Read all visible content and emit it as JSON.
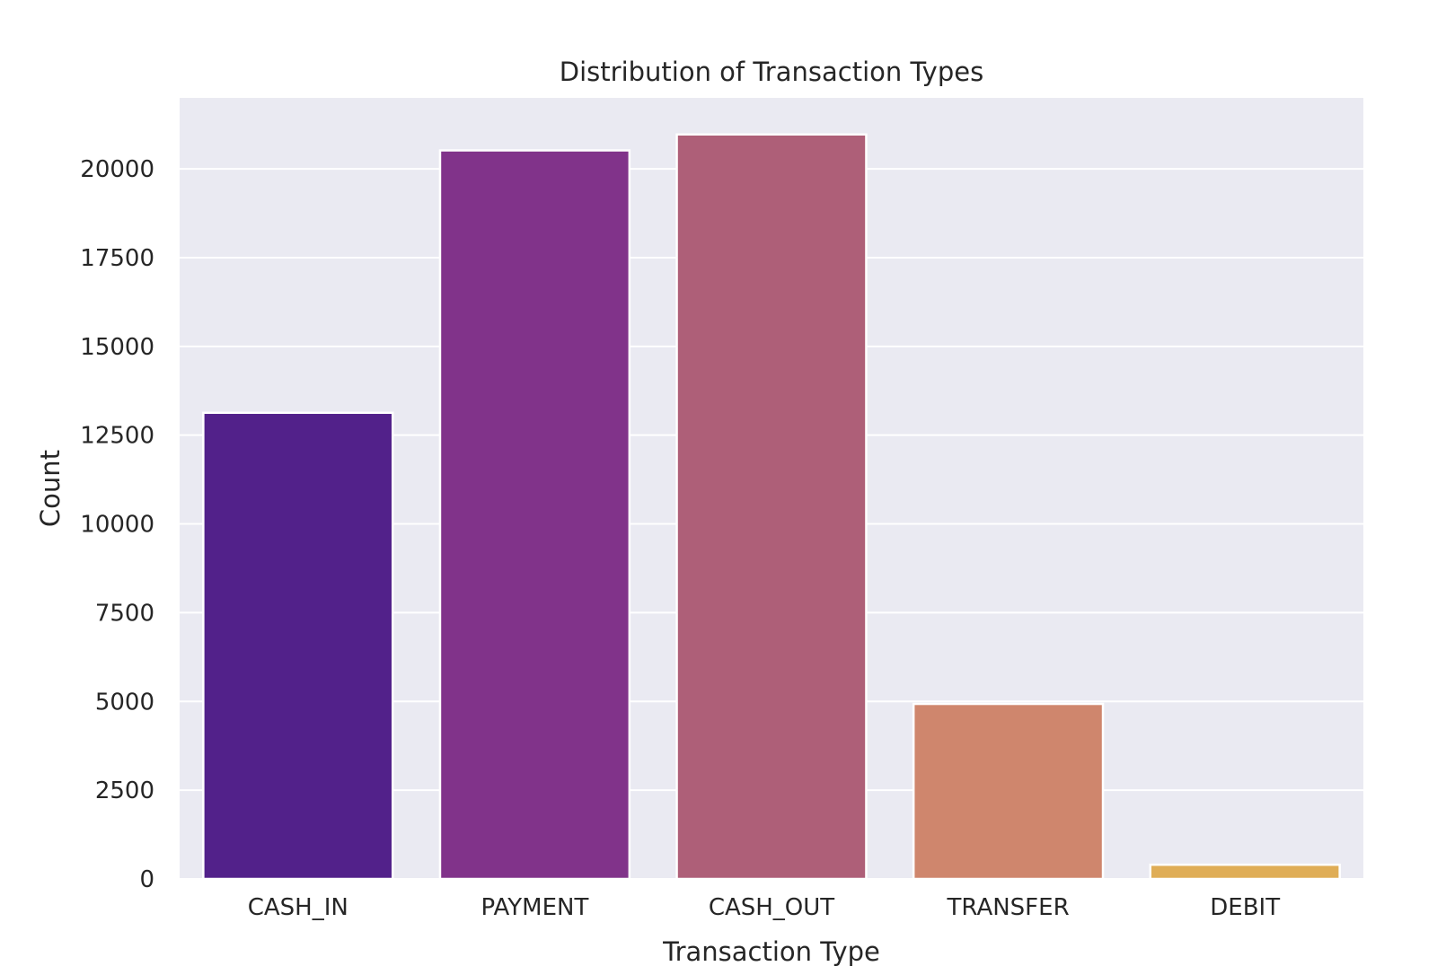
{
  "chart_data": {
    "type": "bar",
    "title": "Distribution of Transaction Types",
    "xlabel": "Transaction Type",
    "ylabel": "Count",
    "categories": [
      "CASH_IN",
      "PAYMENT",
      "CASH_OUT",
      "TRANSFER",
      "DEBIT"
    ],
    "values": [
      13130,
      20520,
      20970,
      4930,
      400
    ],
    "bar_colors": [
      "#52218a",
      "#81338a",
      "#ae5f78",
      "#cf866d",
      "#dfad56"
    ],
    "ylim": [
      0,
      22000
    ],
    "yticks": [
      0,
      2500,
      5000,
      7500,
      10000,
      12500,
      15000,
      17500,
      20000
    ],
    "ytick_labels": [
      "0",
      "2500",
      "5000",
      "7500",
      "10000",
      "12500",
      "15000",
      "17500",
      "20000"
    ],
    "grid": true,
    "background_color": "#eaeaf2",
    "grid_color": "#ffffff"
  }
}
